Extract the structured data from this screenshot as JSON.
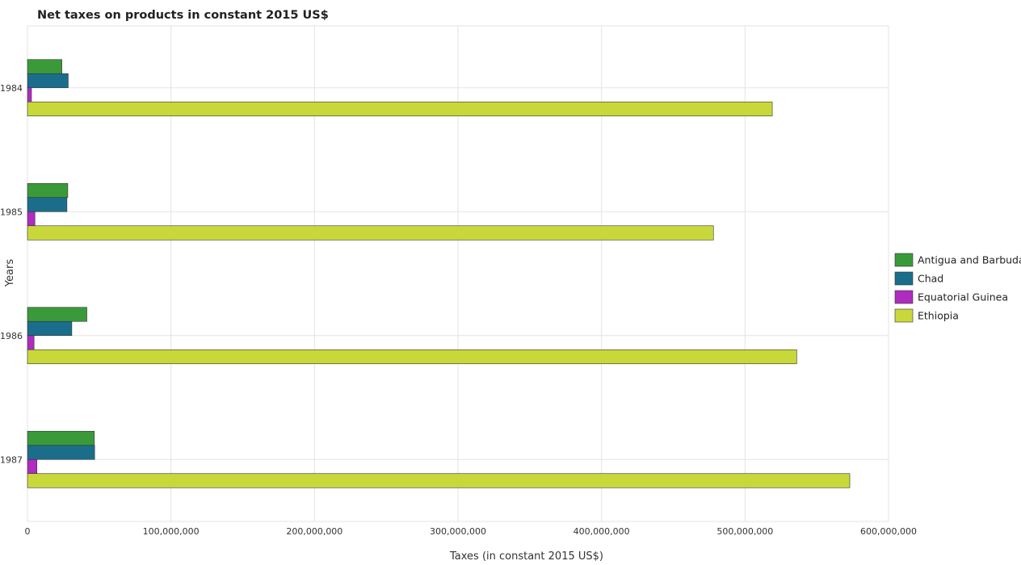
{
  "chart_data": {
    "type": "bar",
    "orientation": "horizontal",
    "title": "Net taxes on products in constant 2015 US$",
    "xlabel": "Taxes (in constant 2015 US$)",
    "ylabel": "Years",
    "categories": [
      "1984",
      "1985",
      "1986",
      "1987"
    ],
    "xlim": [
      0,
      600000000
    ],
    "x_ticks": [
      0,
      100000000,
      200000000,
      300000000,
      400000000,
      500000000,
      600000000
    ],
    "x_tick_labels": [
      "0",
      "100,000,000",
      "200,000,000",
      "300,000,000",
      "400,000,000",
      "500,000,000",
      "600,000,000"
    ],
    "grid": true,
    "legend_position": "right",
    "series": [
      {
        "name": "Antigua and Barbuda",
        "color": "#3a9a3a",
        "values": [
          24000000,
          28100000,
          41400000,
          46600000
        ]
      },
      {
        "name": "Chad",
        "color": "#1a6e8c",
        "values": [
          28400000,
          27500000,
          30900000,
          46800000
        ]
      },
      {
        "name": "Equatorial Guinea",
        "color": "#b02bbf",
        "values": [
          2800000,
          5200000,
          4600000,
          6600000
        ]
      },
      {
        "name": "Ethiopia",
        "color": "#c8d83a",
        "values": [
          519000000,
          478000000,
          536000000,
          573000000
        ]
      }
    ]
  }
}
